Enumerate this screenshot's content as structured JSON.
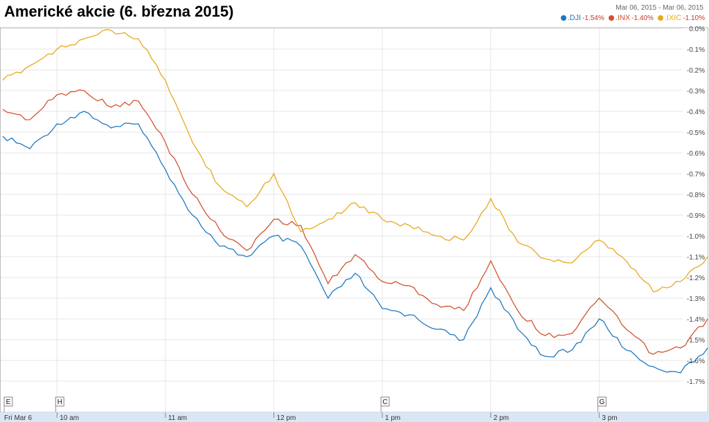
{
  "title": "Americké akcie (6. března 2015)",
  "date_range": "Mar 06, 2015  -  Mar 06, 2015",
  "legend": [
    {
      "name": ".DJI",
      "change": "-1.54%",
      "color": "#1f77c0"
    },
    {
      "name": ".INX",
      "change": "-1.40%",
      "color": "#d2522e"
    },
    {
      "name": ".IXIC",
      "change": "-1.10%",
      "color": "#e8a81c"
    }
  ],
  "x_labels": [
    "Fri Mar 6",
    "10 am",
    "11 am",
    "12 pm",
    "1 pm",
    "2 pm",
    "3 pm"
  ],
  "flags": [
    "E",
    "H",
    "C",
    "G"
  ],
  "chart_data": {
    "type": "line",
    "title": "Americké akcie (6. března 2015)",
    "xlabel": "",
    "ylabel": "",
    "ylim": [
      -1.75,
      0.0
    ],
    "y_ticks": [
      "0.0%",
      "-0.1%",
      "-0.2%",
      "-0.3%",
      "-0.4%",
      "-0.5%",
      "-0.6%",
      "-0.7%",
      "-0.8%",
      "-0.9%",
      "-1.0%",
      "-1.1%",
      "-1.2%",
      "-1.3%",
      "-1.4%",
      "-1.5%",
      "-1.6%",
      "-1.7%"
    ],
    "x": [
      "09:30",
      "09:45",
      "10:00",
      "10:15",
      "10:30",
      "10:45",
      "11:00",
      "11:15",
      "11:30",
      "11:45",
      "12:00",
      "12:15",
      "12:30",
      "12:45",
      "13:00",
      "13:15",
      "13:30",
      "13:45",
      "14:00",
      "14:15",
      "14:30",
      "14:45",
      "15:00",
      "15:15",
      "15:30",
      "15:45",
      "16:00"
    ],
    "series": [
      {
        "name": ".DJI",
        "color": "#1f77c0",
        "values": [
          -0.52,
          -0.58,
          -0.46,
          -0.4,
          -0.48,
          -0.46,
          -0.68,
          -0.9,
          -1.05,
          -1.1,
          -1.0,
          -1.05,
          -1.3,
          -1.18,
          -1.35,
          -1.38,
          -1.45,
          -1.5,
          -1.25,
          -1.45,
          -1.58,
          -1.55,
          -1.4,
          -1.55,
          -1.63,
          -1.66,
          -1.54
        ]
      },
      {
        "name": ".INX",
        "color": "#d2522e",
        "values": [
          -0.39,
          -0.44,
          -0.32,
          -0.3,
          -0.38,
          -0.35,
          -0.55,
          -0.8,
          -0.97,
          -1.07,
          -0.92,
          -0.95,
          -1.23,
          -1.09,
          -1.22,
          -1.24,
          -1.33,
          -1.36,
          -1.12,
          -1.36,
          -1.48,
          -1.47,
          -1.3,
          -1.45,
          -1.57,
          -1.54,
          -1.4
        ]
      },
      {
        "name": ".IXIC",
        "color": "#e8a81c",
        "values": [
          -0.25,
          -0.18,
          -0.1,
          -0.05,
          -0.01,
          -0.05,
          -0.25,
          -0.55,
          -0.76,
          -0.86,
          -0.7,
          -0.98,
          -0.92,
          -0.84,
          -0.92,
          -0.95,
          -1.0,
          -1.02,
          -0.82,
          -1.03,
          -1.11,
          -1.13,
          -1.02,
          -1.12,
          -1.27,
          -1.22,
          -1.1
        ]
      }
    ]
  }
}
